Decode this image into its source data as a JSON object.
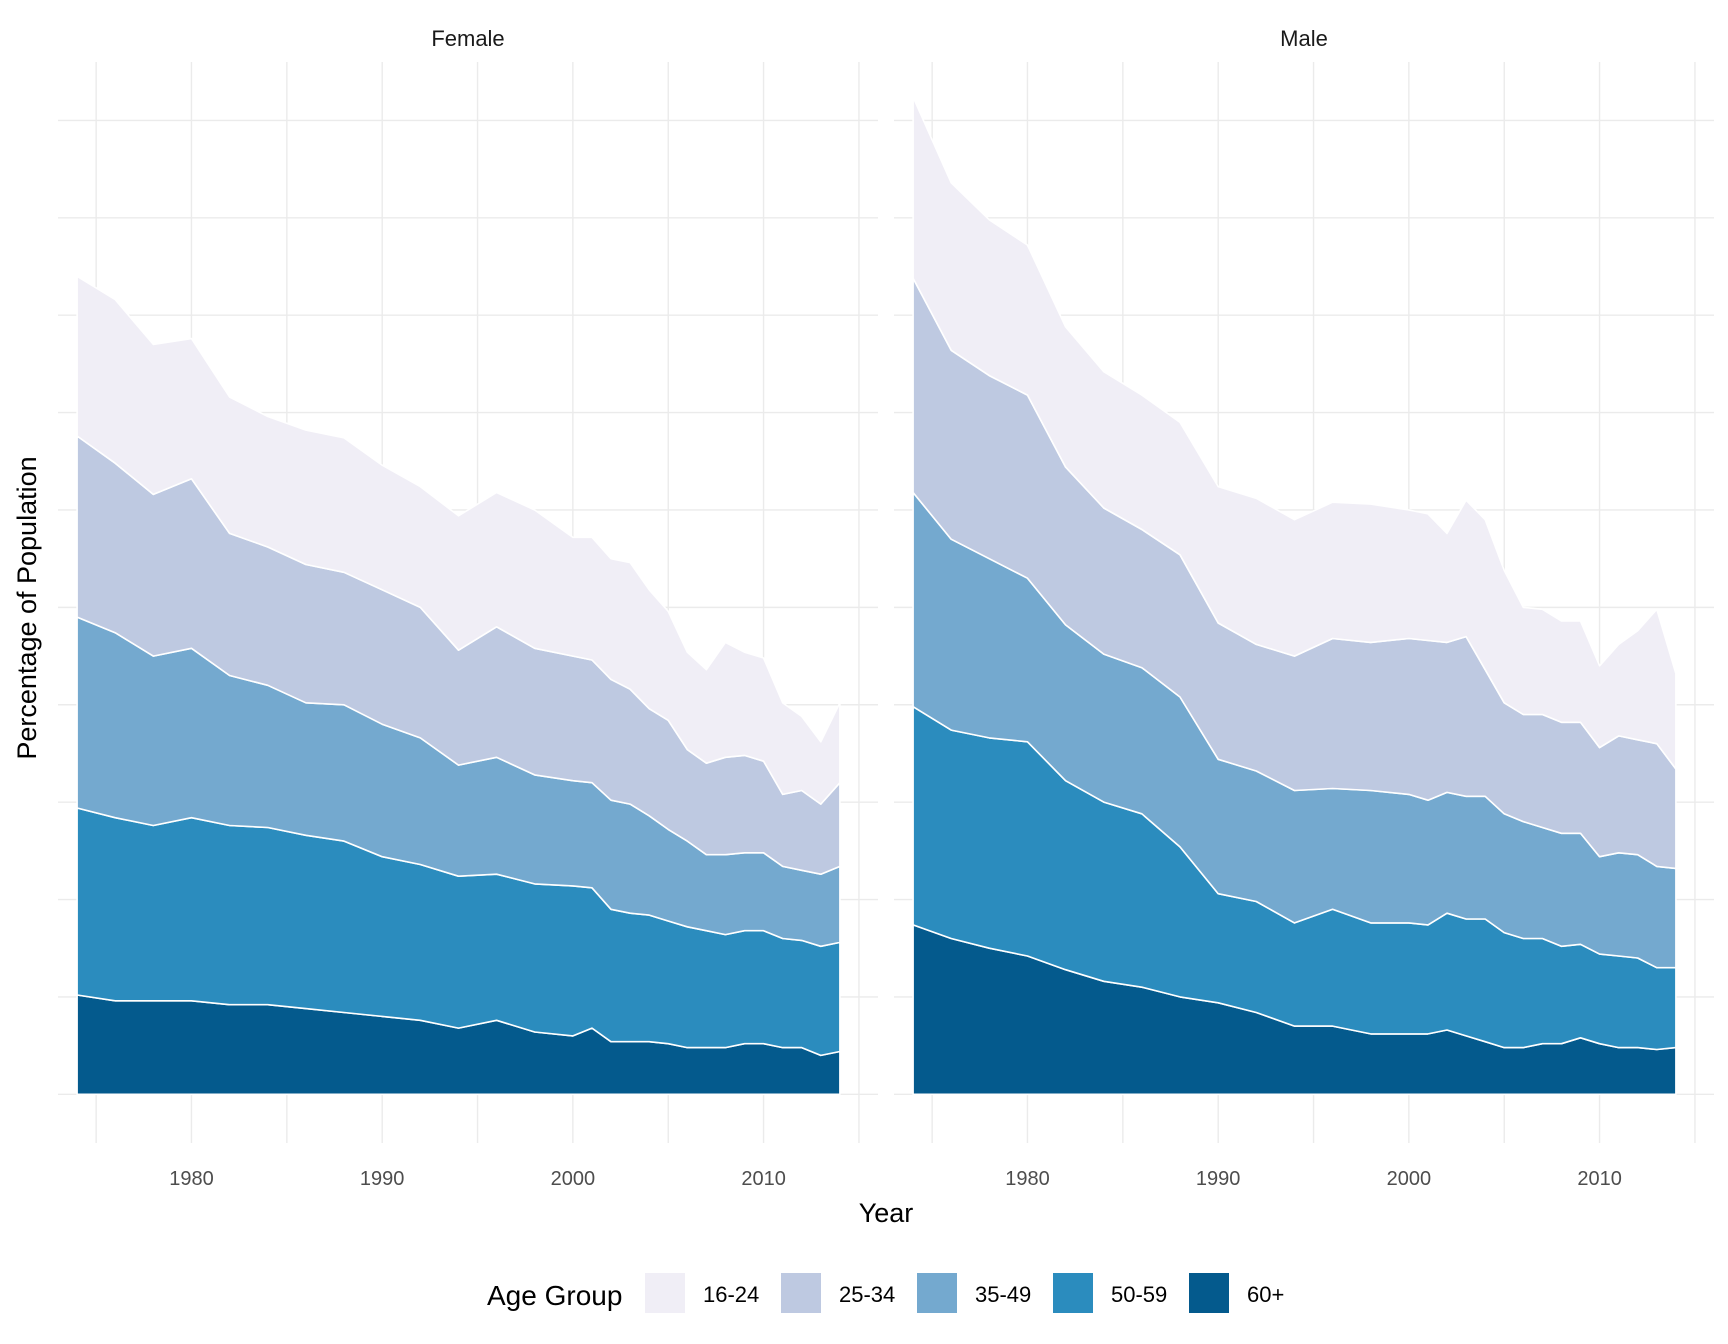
{
  "chart_data": {
    "type": "area",
    "stacked": true,
    "facet_by": "sex",
    "xlabel": "Year",
    "ylabel": "Percentage of Population",
    "legend_title": "Age Group",
    "legend_position": "bottom",
    "grid": true,
    "xlim": [
      1973,
      2016
    ],
    "ylim": [
      -2.5,
      53
    ],
    "x_ticks": [
      1980,
      1990,
      2000,
      2010
    ],
    "y_ticks_shown": false,
    "years": [
      1974,
      1976,
      1978,
      1980,
      1982,
      1984,
      1986,
      1988,
      1990,
      1992,
      1994,
      1996,
      1998,
      2000,
      2001,
      2002,
      2003,
      2004,
      2005,
      2006,
      2007,
      2008,
      2009,
      2010,
      2011,
      2012,
      2013,
      2014
    ],
    "series_order": [
      "60+",
      "50-59",
      "35-49",
      "25-34",
      "16-24"
    ],
    "colors": {
      "16-24": "#f0eef6",
      "25-34": "#bec9e1",
      "35-49": "#74a9cf",
      "50-59": "#2b8cbe",
      "60+": "#045a8d"
    },
    "panels": [
      {
        "title": "Female",
        "series": [
          {
            "name": "60+",
            "values": [
              5.1,
              4.8,
              4.8,
              4.8,
              4.6,
              4.6,
              4.4,
              4.2,
              4.0,
              3.8,
              3.4,
              3.8,
              3.2,
              3.0,
              3.4,
              2.7,
              2.7,
              2.7,
              2.6,
              2.4,
              2.4,
              2.4,
              2.6,
              2.6,
              2.4,
              2.4,
              2.0,
              2.2
            ]
          },
          {
            "name": "50-59",
            "values": [
              9.6,
              9.4,
              9.0,
              9.4,
              9.2,
              9.1,
              8.9,
              8.8,
              8.2,
              8.0,
              7.8,
              7.5,
              7.6,
              7.7,
              7.2,
              6.8,
              6.6,
              6.5,
              6.3,
              6.2,
              6.0,
              5.8,
              5.8,
              5.8,
              5.6,
              5.5,
              5.6,
              5.6
            ]
          },
          {
            "name": "35-49",
            "values": [
              9.8,
              9.5,
              8.7,
              8.7,
              7.7,
              7.3,
              6.8,
              7.0,
              6.8,
              6.5,
              5.7,
              6.0,
              5.6,
              5.4,
              5.4,
              5.6,
              5.6,
              5.1,
              4.7,
              4.4,
              3.9,
              4.1,
              4.0,
              4.0,
              3.7,
              3.6,
              3.7,
              3.9
            ]
          },
          {
            "name": "25-34",
            "values": [
              9.3,
              8.7,
              8.3,
              8.7,
              7.3,
              7.1,
              7.1,
              6.8,
              6.9,
              6.7,
              5.9,
              6.7,
              6.5,
              6.4,
              6.3,
              6.2,
              5.9,
              5.5,
              5.6,
              4.7,
              4.7,
              5.0,
              5.0,
              4.7,
              3.7,
              4.1,
              3.6,
              4.3
            ]
          },
          {
            "name": "16-24",
            "values": [
              8.2,
              8.4,
              7.7,
              7.2,
              7.0,
              6.7,
              6.9,
              6.9,
              6.4,
              6.2,
              6.9,
              6.9,
              7.1,
              6.1,
              6.3,
              6.2,
              6.5,
              6.1,
              5.6,
              5.0,
              4.8,
              5.9,
              5.3,
              5.3,
              4.7,
              3.8,
              3.2,
              4.1
            ]
          }
        ]
      },
      {
        "title": "Male",
        "series": [
          {
            "name": "60+",
            "values": [
              8.7,
              8.0,
              7.5,
              7.1,
              6.4,
              5.8,
              5.5,
              5.0,
              4.7,
              4.2,
              3.5,
              3.5,
              3.1,
              3.1,
              3.1,
              3.3,
              3.0,
              2.7,
              2.4,
              2.4,
              2.6,
              2.6,
              2.9,
              2.6,
              2.4,
              2.4,
              2.3,
              2.4
            ]
          },
          {
            "name": "50-59",
            "values": [
              11.2,
              10.7,
              10.8,
              11.0,
              9.7,
              9.2,
              8.9,
              7.7,
              5.6,
              5.7,
              5.3,
              6.0,
              5.7,
              5.7,
              5.6,
              6.0,
              6.0,
              6.3,
              5.9,
              5.6,
              5.4,
              5.0,
              4.8,
              4.6,
              4.7,
              4.6,
              4.2,
              4.1
            ]
          },
          {
            "name": "35-49",
            "values": [
              11.0,
              9.8,
              9.2,
              8.4,
              8.0,
              7.6,
              7.5,
              7.7,
              6.9,
              6.7,
              6.8,
              6.2,
              6.8,
              6.6,
              6.4,
              6.2,
              6.3,
              6.3,
              6.1,
              6.0,
              5.7,
              5.8,
              5.7,
              5.0,
              5.3,
              5.3,
              5.2,
              5.1
            ]
          },
          {
            "name": "25-34",
            "values": [
              11.0,
              9.7,
              9.4,
              9.4,
              8.1,
              7.5,
              7.1,
              7.3,
              7.0,
              6.5,
              6.9,
              7.7,
              7.6,
              8.0,
              8.2,
              7.7,
              8.2,
              6.5,
              5.7,
              5.5,
              5.8,
              5.7,
              5.7,
              5.6,
              6.0,
              5.9,
              6.3,
              5.1
            ]
          },
          {
            "name": "16-24",
            "values": [
              9.3,
              8.6,
              8.0,
              7.7,
              7.2,
              7.0,
              6.9,
              6.8,
              7.0,
              7.5,
              7.0,
              7.0,
              7.1,
              6.6,
              6.5,
              5.6,
              7.0,
              7.7,
              6.8,
              5.5,
              5.4,
              5.2,
              5.2,
              4.2,
              4.7,
              5.6,
              6.9,
              4.9
            ]
          }
        ]
      }
    ]
  }
}
